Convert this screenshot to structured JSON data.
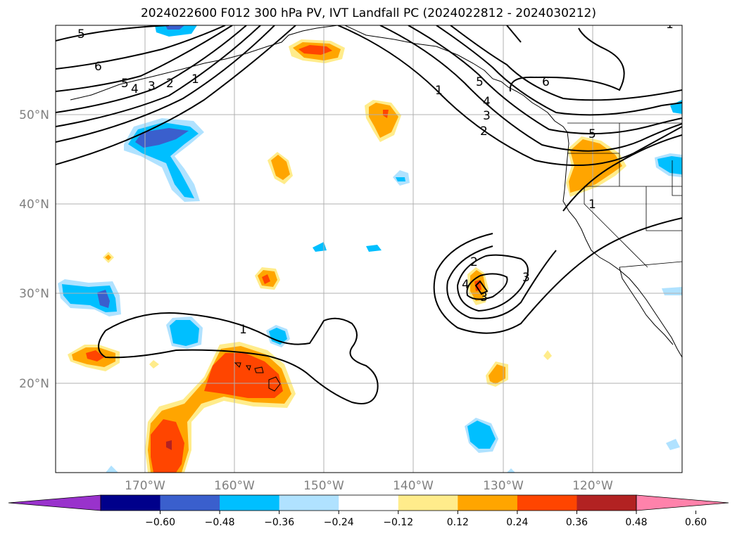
{
  "title": "2024022600 F012 300 hPa PV, IVT Landfall PC (2024022812 - 2024030212)",
  "map": {
    "lon_range": [
      -180,
      -110
    ],
    "lat_range": [
      10,
      60
    ],
    "gridlines": true,
    "lat_ticks": [
      {
        "value": 50,
        "label": "50°N"
      },
      {
        "value": 40,
        "label": "40°N"
      },
      {
        "value": 30,
        "label": "30°N"
      },
      {
        "value": 20,
        "label": "20°N"
      }
    ],
    "lon_ticks": [
      {
        "value": -170,
        "label": "170°W"
      },
      {
        "value": -160,
        "label": "160°W"
      },
      {
        "value": -150,
        "label": "150°W"
      },
      {
        "value": -140,
        "label": "140°W"
      },
      {
        "value": -130,
        "label": "130°W"
      },
      {
        "value": -120,
        "label": "120°W"
      }
    ],
    "contour_labels": [
      "5",
      "6",
      "5",
      "4",
      "3",
      "2",
      "1",
      "1",
      "2",
      "3",
      "4",
      "5",
      "6",
      "5",
      "1",
      "1",
      "2",
      "3",
      "4",
      "3",
      "1"
    ]
  },
  "colorbar": {
    "extend": "both",
    "colors": [
      "#9932cc",
      "#00008b",
      "#3a5fcd",
      "#00bfff",
      "#b0e2ff",
      "#ffffff",
      "#ffec8b",
      "#ffa500",
      "#ff4500",
      "#b22222",
      "#ff82ab"
    ],
    "tick_labels": [
      "−0.60",
      "−0.48",
      "−0.36",
      "−0.24",
      "−0.12",
      "0.12",
      "0.24",
      "0.36",
      "0.48",
      "0.60"
    ]
  }
}
